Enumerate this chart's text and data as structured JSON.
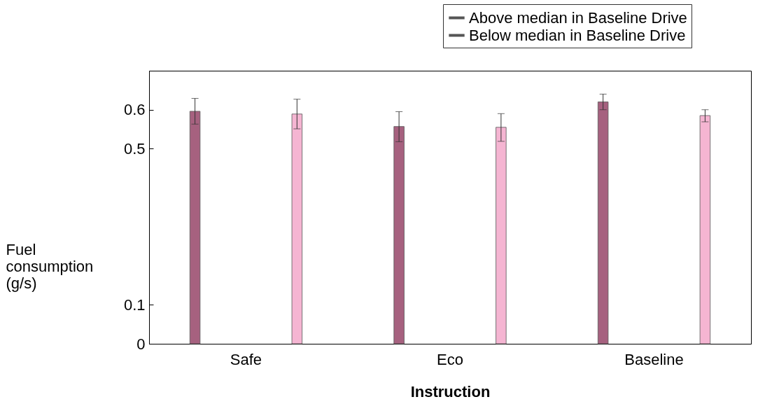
{
  "chart_data": {
    "type": "bar",
    "xlabel": "Instruction",
    "ylabel": "Fuel consumption (g/s)",
    "categories": [
      "Safe",
      "Eco",
      "Baseline"
    ],
    "series": [
      {
        "name": "Above median in Baseline Drive",
        "color": "#a6617f",
        "values": [
          0.596,
          0.557,
          0.62
        ],
        "errors": [
          [
            0.563,
            0.629
          ],
          [
            0.518,
            0.595
          ],
          [
            0.6,
            0.64
          ]
        ]
      },
      {
        "name": "Below median in Baseline Drive",
        "color": "#f5b5d2",
        "values": [
          0.589,
          0.555,
          0.585
        ],
        "errors": [
          [
            0.551,
            0.627
          ],
          [
            0.519,
            0.59
          ],
          [
            0.569,
            0.6
          ]
        ]
      }
    ],
    "ylim": [
      0,
      0.7
    ],
    "yticks": [
      0,
      0.1,
      0.5,
      0.6
    ],
    "grid": false,
    "legend": "top right"
  }
}
